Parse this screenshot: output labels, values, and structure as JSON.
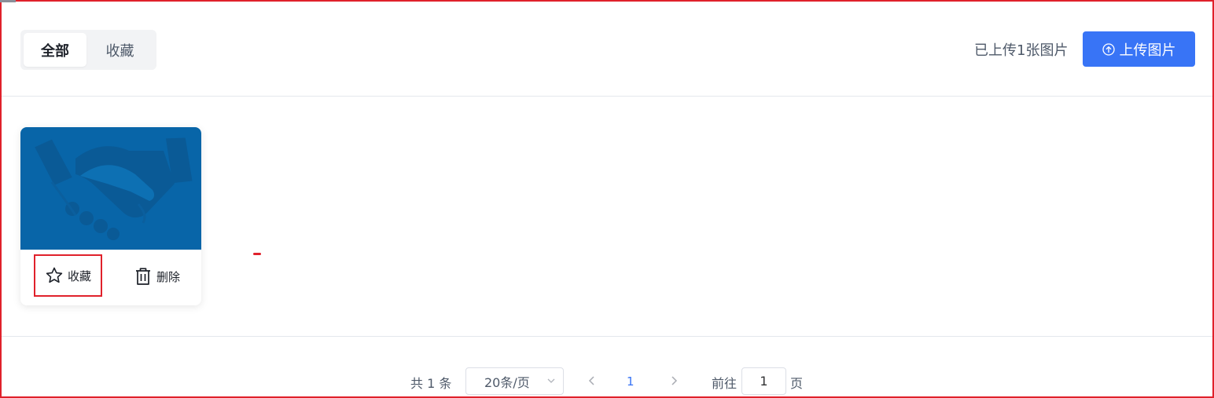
{
  "header": {
    "tabs": [
      {
        "label": "全部",
        "active": true
      },
      {
        "label": "收藏",
        "active": false
      }
    ],
    "upload_count_text": "已上传1张图片",
    "upload_button_label": "上传图片",
    "upload_icon": "upload-circle-icon"
  },
  "gallery": {
    "items": [
      {
        "image_icon": "handshake-icon",
        "image_color": "#0865a8",
        "favorite_label": "收藏",
        "delete_label": "删除"
      }
    ]
  },
  "pagination": {
    "total_text": "共 1 条",
    "page_size_text": "20条/页",
    "current_page": "1",
    "goto_label": "前往",
    "goto_value": "1",
    "page_suffix": "页"
  },
  "colors": {
    "primary": "#3874f6",
    "highlight_border": "#e0212b",
    "thumbnail_bg": "#0865a8"
  }
}
